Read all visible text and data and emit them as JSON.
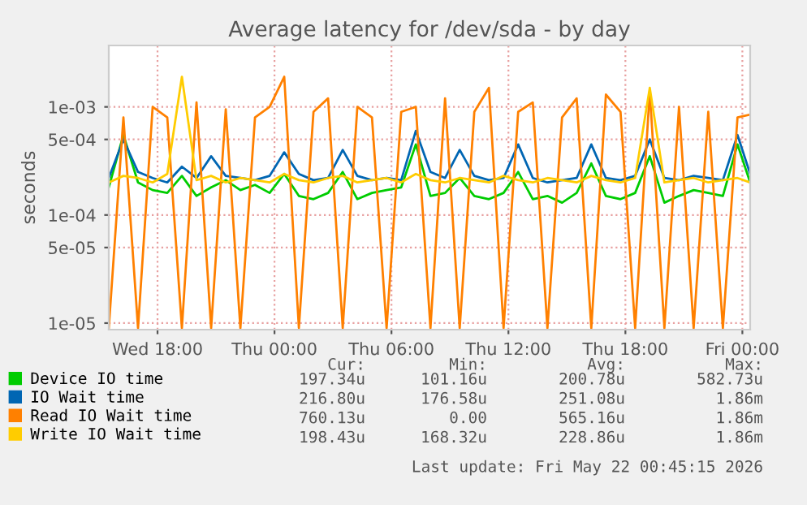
{
  "chart_data": {
    "type": "line",
    "title": "Average latency for /dev/sda - by day",
    "ylabel": "seconds",
    "log": "y",
    "grid": true,
    "legend": "bottom",
    "marker": "none",
    "line_style": "solid",
    "xlim": [
      "2026-05-20T15:30",
      "2026-05-22T00:24"
    ],
    "ylim": [
      8.7e-06,
      0.0037
    ],
    "xticks": [
      {
        "value": "2026-05-20T18:00",
        "label": "Wed 18:00"
      },
      {
        "value": "2026-05-21T00:00",
        "label": "Thu 00:00"
      },
      {
        "value": "2026-05-21T06:00",
        "label": "Thu 06:00"
      },
      {
        "value": "2026-05-21T12:00",
        "label": "Thu 12:00"
      },
      {
        "value": "2026-05-21T18:00",
        "label": "Thu 18:00"
      },
      {
        "value": "2026-05-22T00:00",
        "label": "Fri 00:00"
      }
    ],
    "yticks": [
      {
        "value": 1e-05,
        "label": "1e-05"
      },
      {
        "value": 5e-05,
        "label": "5e-05"
      },
      {
        "value": 0.0001,
        "label": "1e-04"
      },
      {
        "value": 0.0005,
        "label": "5e-04"
      },
      {
        "value": 0.001,
        "label": "1e-03"
      }
    ],
    "x": [
      "2026-05-20T15:30",
      "2026-05-20T16:15",
      "2026-05-20T17:00",
      "2026-05-20T17:45",
      "2026-05-20T18:30",
      "2026-05-20T19:15",
      "2026-05-20T20:00",
      "2026-05-20T20:45",
      "2026-05-20T21:30",
      "2026-05-20T22:15",
      "2026-05-20T23:00",
      "2026-05-20T23:45",
      "2026-05-21T00:30",
      "2026-05-21T01:15",
      "2026-05-21T02:00",
      "2026-05-21T02:45",
      "2026-05-21T03:30",
      "2026-05-21T04:15",
      "2026-05-21T05:00",
      "2026-05-21T05:45",
      "2026-05-21T06:30",
      "2026-05-21T07:15",
      "2026-05-21T08:00",
      "2026-05-21T08:45",
      "2026-05-21T09:30",
      "2026-05-21T10:15",
      "2026-05-21T11:00",
      "2026-05-21T11:45",
      "2026-05-21T12:30",
      "2026-05-21T13:15",
      "2026-05-21T14:00",
      "2026-05-21T14:45",
      "2026-05-21T15:30",
      "2026-05-21T16:15",
      "2026-05-21T17:00",
      "2026-05-21T17:45",
      "2026-05-21T18:30",
      "2026-05-21T19:15",
      "2026-05-21T20:00",
      "2026-05-21T20:45",
      "2026-05-21T21:30",
      "2026-05-21T22:15",
      "2026-05-21T23:00",
      "2026-05-21T23:45",
      "2026-05-22T00:24"
    ],
    "series": [
      {
        "name": "Device IO time",
        "color": "#00cc00",
        "values": [
          0.00018,
          0.00055,
          0.0002,
          0.00017,
          0.00016,
          0.00023,
          0.00015,
          0.00018,
          0.00021,
          0.00017,
          0.00019,
          0.00016,
          0.00024,
          0.00015,
          0.00014,
          0.00016,
          0.00025,
          0.00014,
          0.00016,
          0.00017,
          0.00018,
          0.00045,
          0.00015,
          0.00016,
          0.00022,
          0.00015,
          0.00014,
          0.00016,
          0.00025,
          0.00014,
          0.00015,
          0.00013,
          0.00016,
          0.0003,
          0.00015,
          0.00014,
          0.00016,
          0.00035,
          0.00013,
          0.00015,
          0.00017,
          0.00016,
          0.00015,
          0.00045,
          0.0002
        ]
      },
      {
        "name": "IO Wait time",
        "color": "#0066b3",
        "values": [
          0.00022,
          0.0005,
          0.00025,
          0.00022,
          0.0002,
          0.00028,
          0.00022,
          0.00035,
          0.00023,
          0.00022,
          0.00021,
          0.00023,
          0.00038,
          0.00024,
          0.00021,
          0.00022,
          0.0004,
          0.00023,
          0.00021,
          0.00022,
          0.00021,
          0.0006,
          0.00025,
          0.00022,
          0.0004,
          0.00023,
          0.00021,
          0.00022,
          0.00045,
          0.00022,
          0.0002,
          0.00021,
          0.00022,
          0.00045,
          0.00022,
          0.00021,
          0.00023,
          0.0005,
          0.00022,
          0.00021,
          0.00023,
          0.00022,
          0.00021,
          0.00055,
          0.00024
        ]
      },
      {
        "name": "Read IO Wait time",
        "color": "#ff8000",
        "values": [
          9e-06,
          0.0008,
          9e-06,
          0.001,
          0.0008,
          9e-06,
          0.0011,
          9e-06,
          0.00095,
          9e-06,
          0.0008,
          0.001,
          0.0019,
          9e-06,
          0.0009,
          0.0012,
          9e-06,
          0.001,
          0.0008,
          9e-06,
          0.0009,
          0.001,
          9e-06,
          0.0012,
          9e-06,
          0.0009,
          0.0015,
          9e-06,
          0.0009,
          0.0011,
          9e-06,
          0.0008,
          0.0012,
          9e-06,
          0.0013,
          0.0009,
          9e-06,
          0.0014,
          9e-06,
          0.001,
          9e-06,
          0.0009,
          9e-06,
          0.0008,
          0.00085
        ]
      },
      {
        "name": "Write IO Wait time",
        "color": "#ffcc00",
        "values": [
          0.0002,
          0.00023,
          0.00022,
          0.0002,
          0.00024,
          0.0019,
          0.00021,
          0.00023,
          0.0002,
          0.00022,
          0.00021,
          0.0002,
          0.00024,
          0.00021,
          0.0002,
          0.00022,
          0.00023,
          0.0002,
          0.00021,
          0.00022,
          0.0002,
          0.00024,
          0.00021,
          0.0002,
          0.00022,
          0.00021,
          0.0002,
          0.00023,
          0.00021,
          0.0002,
          0.00022,
          0.00021,
          0.0002,
          0.00023,
          0.00021,
          0.0002,
          0.00022,
          0.0015,
          0.0002,
          0.00021,
          0.00022,
          0.0002,
          0.00021,
          0.00022,
          0.0002
        ]
      }
    ],
    "annotations": [
      "Cur:",
      "Min:",
      "Avg:",
      "Max:",
      "197.34u",
      "101.16u",
      "200.78u",
      "582.73u",
      "216.80u",
      "176.58u",
      "251.08u",
      "1.86m",
      "760.13u",
      "0.00",
      "565.16u",
      "1.86m",
      "198.43u",
      "168.32u",
      "228.86u",
      "1.86m",
      "Last update: Fri May 22 00:45:15 2026"
    ]
  }
}
